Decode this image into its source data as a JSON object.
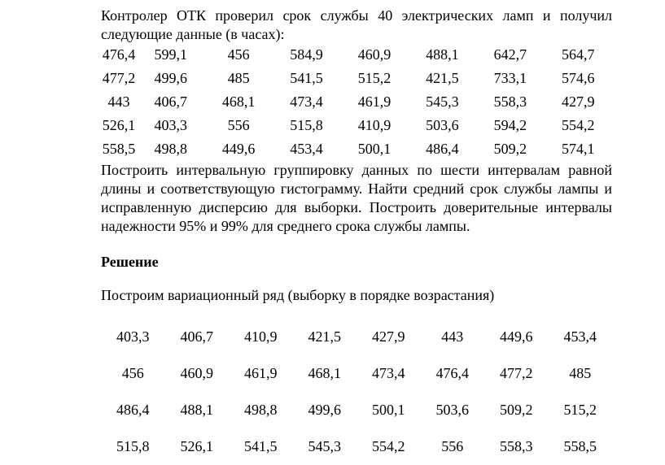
{
  "problem": {
    "lines": [
      "Контролер ОТК проверил срок службы 40 электрических ламп и получил",
      "следующие данные (в часах):"
    ]
  },
  "data_table": {
    "rows": [
      [
        "476,4",
        "599,1",
        "456",
        "584,9",
        "460,9",
        "488,1",
        "642,7",
        "564,7"
      ],
      [
        "477,2",
        "499,6",
        "485",
        "541,5",
        "515,2",
        "421,5",
        "733,1",
        "574,6"
      ],
      [
        "443",
        "406,7",
        "468,1",
        "473,4",
        "461,9",
        "545,3",
        "558,3",
        "427,9"
      ],
      [
        "526,1",
        "403,3",
        "556",
        "515,8",
        "410,9",
        "503,6",
        "594,2",
        "554,2"
      ],
      [
        "558,5",
        "498,8",
        "449,6",
        "453,4",
        "500,1",
        "486,4",
        "509,2",
        "574,1"
      ]
    ]
  },
  "task": {
    "lines": [
      "Построить интервальную группировку данных по шести интервалам равной",
      "длины и соответствующую гистограмму. Найти средний срок службы лампы и",
      "исправленную дисперсию для выборки. Построить доверительные интервалы",
      "надежности 95% и 99% для среднего срока службы лампы."
    ]
  },
  "solution": {
    "heading": "Решение",
    "intro": "Построим вариационный ряд (выборку в порядке возрастания)"
  },
  "variation_table": {
    "rows": [
      [
        "403,3",
        "406,7",
        "410,9",
        "421,5",
        "427,9",
        "443",
        "449,6",
        "453,4"
      ],
      [
        "456",
        "460,9",
        "461,9",
        "468,1",
        "473,4",
        "476,4",
        "477,2",
        "485"
      ],
      [
        "486,4",
        "488,1",
        "498,8",
        "499,6",
        "500,1",
        "503,6",
        "509,2",
        "515,2"
      ],
      [
        "515,8",
        "526,1",
        "541,5",
        "545,3",
        "554,2",
        "556",
        "558,3",
        "558,5"
      ]
    ]
  }
}
